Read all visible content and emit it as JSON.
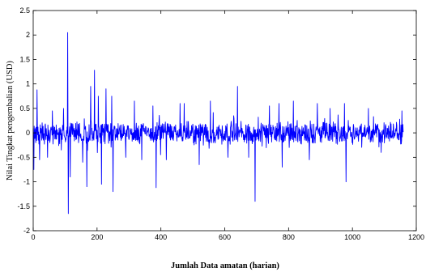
{
  "chart_data": {
    "type": "line",
    "title": "",
    "xlabel": "Jumlah Data amatan (harian)",
    "ylabel": "Nilai Tingkat pengembalian (USD)",
    "xlim": [
      0,
      1200
    ],
    "ylim": [
      -2,
      2.5
    ],
    "xticks": [
      "0",
      "200",
      "400",
      "600",
      "800",
      "1000",
      "1200"
    ],
    "yticks": [
      "-2",
      "-1.5",
      "-1",
      "-0.5",
      "0",
      "0.5",
      "1",
      "1.5",
      "2",
      "2.5"
    ],
    "grid": false,
    "legend": "none",
    "series": [
      {
        "color": "#0000ff",
        "n_points": 1160,
        "noise_amplitude": 0.25,
        "spikes": [
          {
            "x": 2,
            "y": -0.75
          },
          {
            "x": 12,
            "y": 0.88
          },
          {
            "x": 20,
            "y": -0.55
          },
          {
            "x": 45,
            "y": -0.5
          },
          {
            "x": 60,
            "y": 0.45
          },
          {
            "x": 88,
            "y": -0.35
          },
          {
            "x": 95,
            "y": 0.5
          },
          {
            "x": 108,
            "y": 2.05
          },
          {
            "x": 110,
            "y": -1.65
          },
          {
            "x": 116,
            "y": -0.9
          },
          {
            "x": 155,
            "y": -0.6
          },
          {
            "x": 168,
            "y": -1.1
          },
          {
            "x": 180,
            "y": 0.95
          },
          {
            "x": 192,
            "y": 1.28
          },
          {
            "x": 204,
            "y": 0.75
          },
          {
            "x": 214,
            "y": -1.05
          },
          {
            "x": 228,
            "y": 0.9
          },
          {
            "x": 246,
            "y": 0.75
          },
          {
            "x": 250,
            "y": -1.2
          },
          {
            "x": 290,
            "y": -0.5
          },
          {
            "x": 317,
            "y": 0.65
          },
          {
            "x": 340,
            "y": -0.55
          },
          {
            "x": 375,
            "y": 0.55
          },
          {
            "x": 385,
            "y": -1.12
          },
          {
            "x": 417,
            "y": -0.55
          },
          {
            "x": 460,
            "y": 0.6
          },
          {
            "x": 473,
            "y": 0.6
          },
          {
            "x": 520,
            "y": -0.65
          },
          {
            "x": 555,
            "y": 0.65
          },
          {
            "x": 610,
            "y": -0.5
          },
          {
            "x": 628,
            "y": 0.35
          },
          {
            "x": 640,
            "y": 0.95
          },
          {
            "x": 675,
            "y": -0.5
          },
          {
            "x": 695,
            "y": -1.4
          },
          {
            "x": 740,
            "y": 0.55
          },
          {
            "x": 770,
            "y": 0.6
          },
          {
            "x": 780,
            "y": -0.7
          },
          {
            "x": 815,
            "y": 0.65
          },
          {
            "x": 865,
            "y": -0.55
          },
          {
            "x": 890,
            "y": 0.6
          },
          {
            "x": 930,
            "y": 0.5
          },
          {
            "x": 975,
            "y": 0.6
          },
          {
            "x": 980,
            "y": -1.0
          },
          {
            "x": 1050,
            "y": 0.5
          },
          {
            "x": 1090,
            "y": -0.4
          },
          {
            "x": 1155,
            "y": 0.45
          }
        ]
      }
    ]
  }
}
